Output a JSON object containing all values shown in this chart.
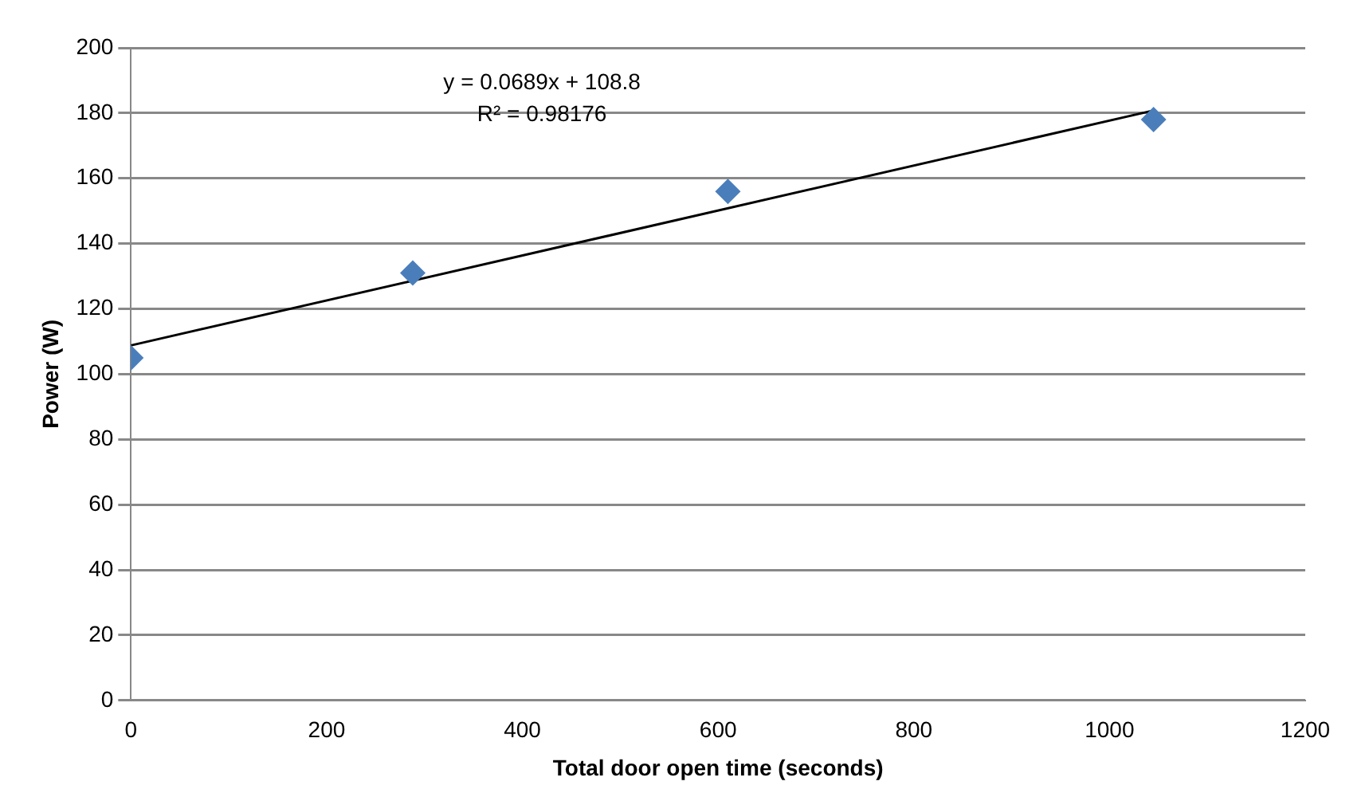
{
  "chart_data": {
    "type": "scatter",
    "xlabel": "Total door open time (seconds)",
    "ylabel": "Power (W)",
    "series": [
      {
        "color": "#4a7ebb",
        "x": [
          0,
          288,
          610,
          1045
        ],
        "values": [
          105,
          131,
          156,
          178
        ],
        "marker": "diamond"
      },
      {
        "type": "line",
        "color": "#000000",
        "x": [
          0,
          1045
        ],
        "values": [
          108.8,
          180.8
        ],
        "marker": "none"
      }
    ],
    "annotations": [
      "y = 0.0689x + 108.8",
      "R² = 0.98176"
    ],
    "xlim": [
      0,
      1200
    ],
    "xticks": [
      0,
      200,
      400,
      600,
      800,
      1000,
      1200
    ],
    "ylim": [
      0,
      200
    ],
    "yticks": [
      0,
      20,
      40,
      60,
      80,
      100,
      120,
      140,
      160,
      180,
      200
    ],
    "grid": "y",
    "legend": false
  }
}
